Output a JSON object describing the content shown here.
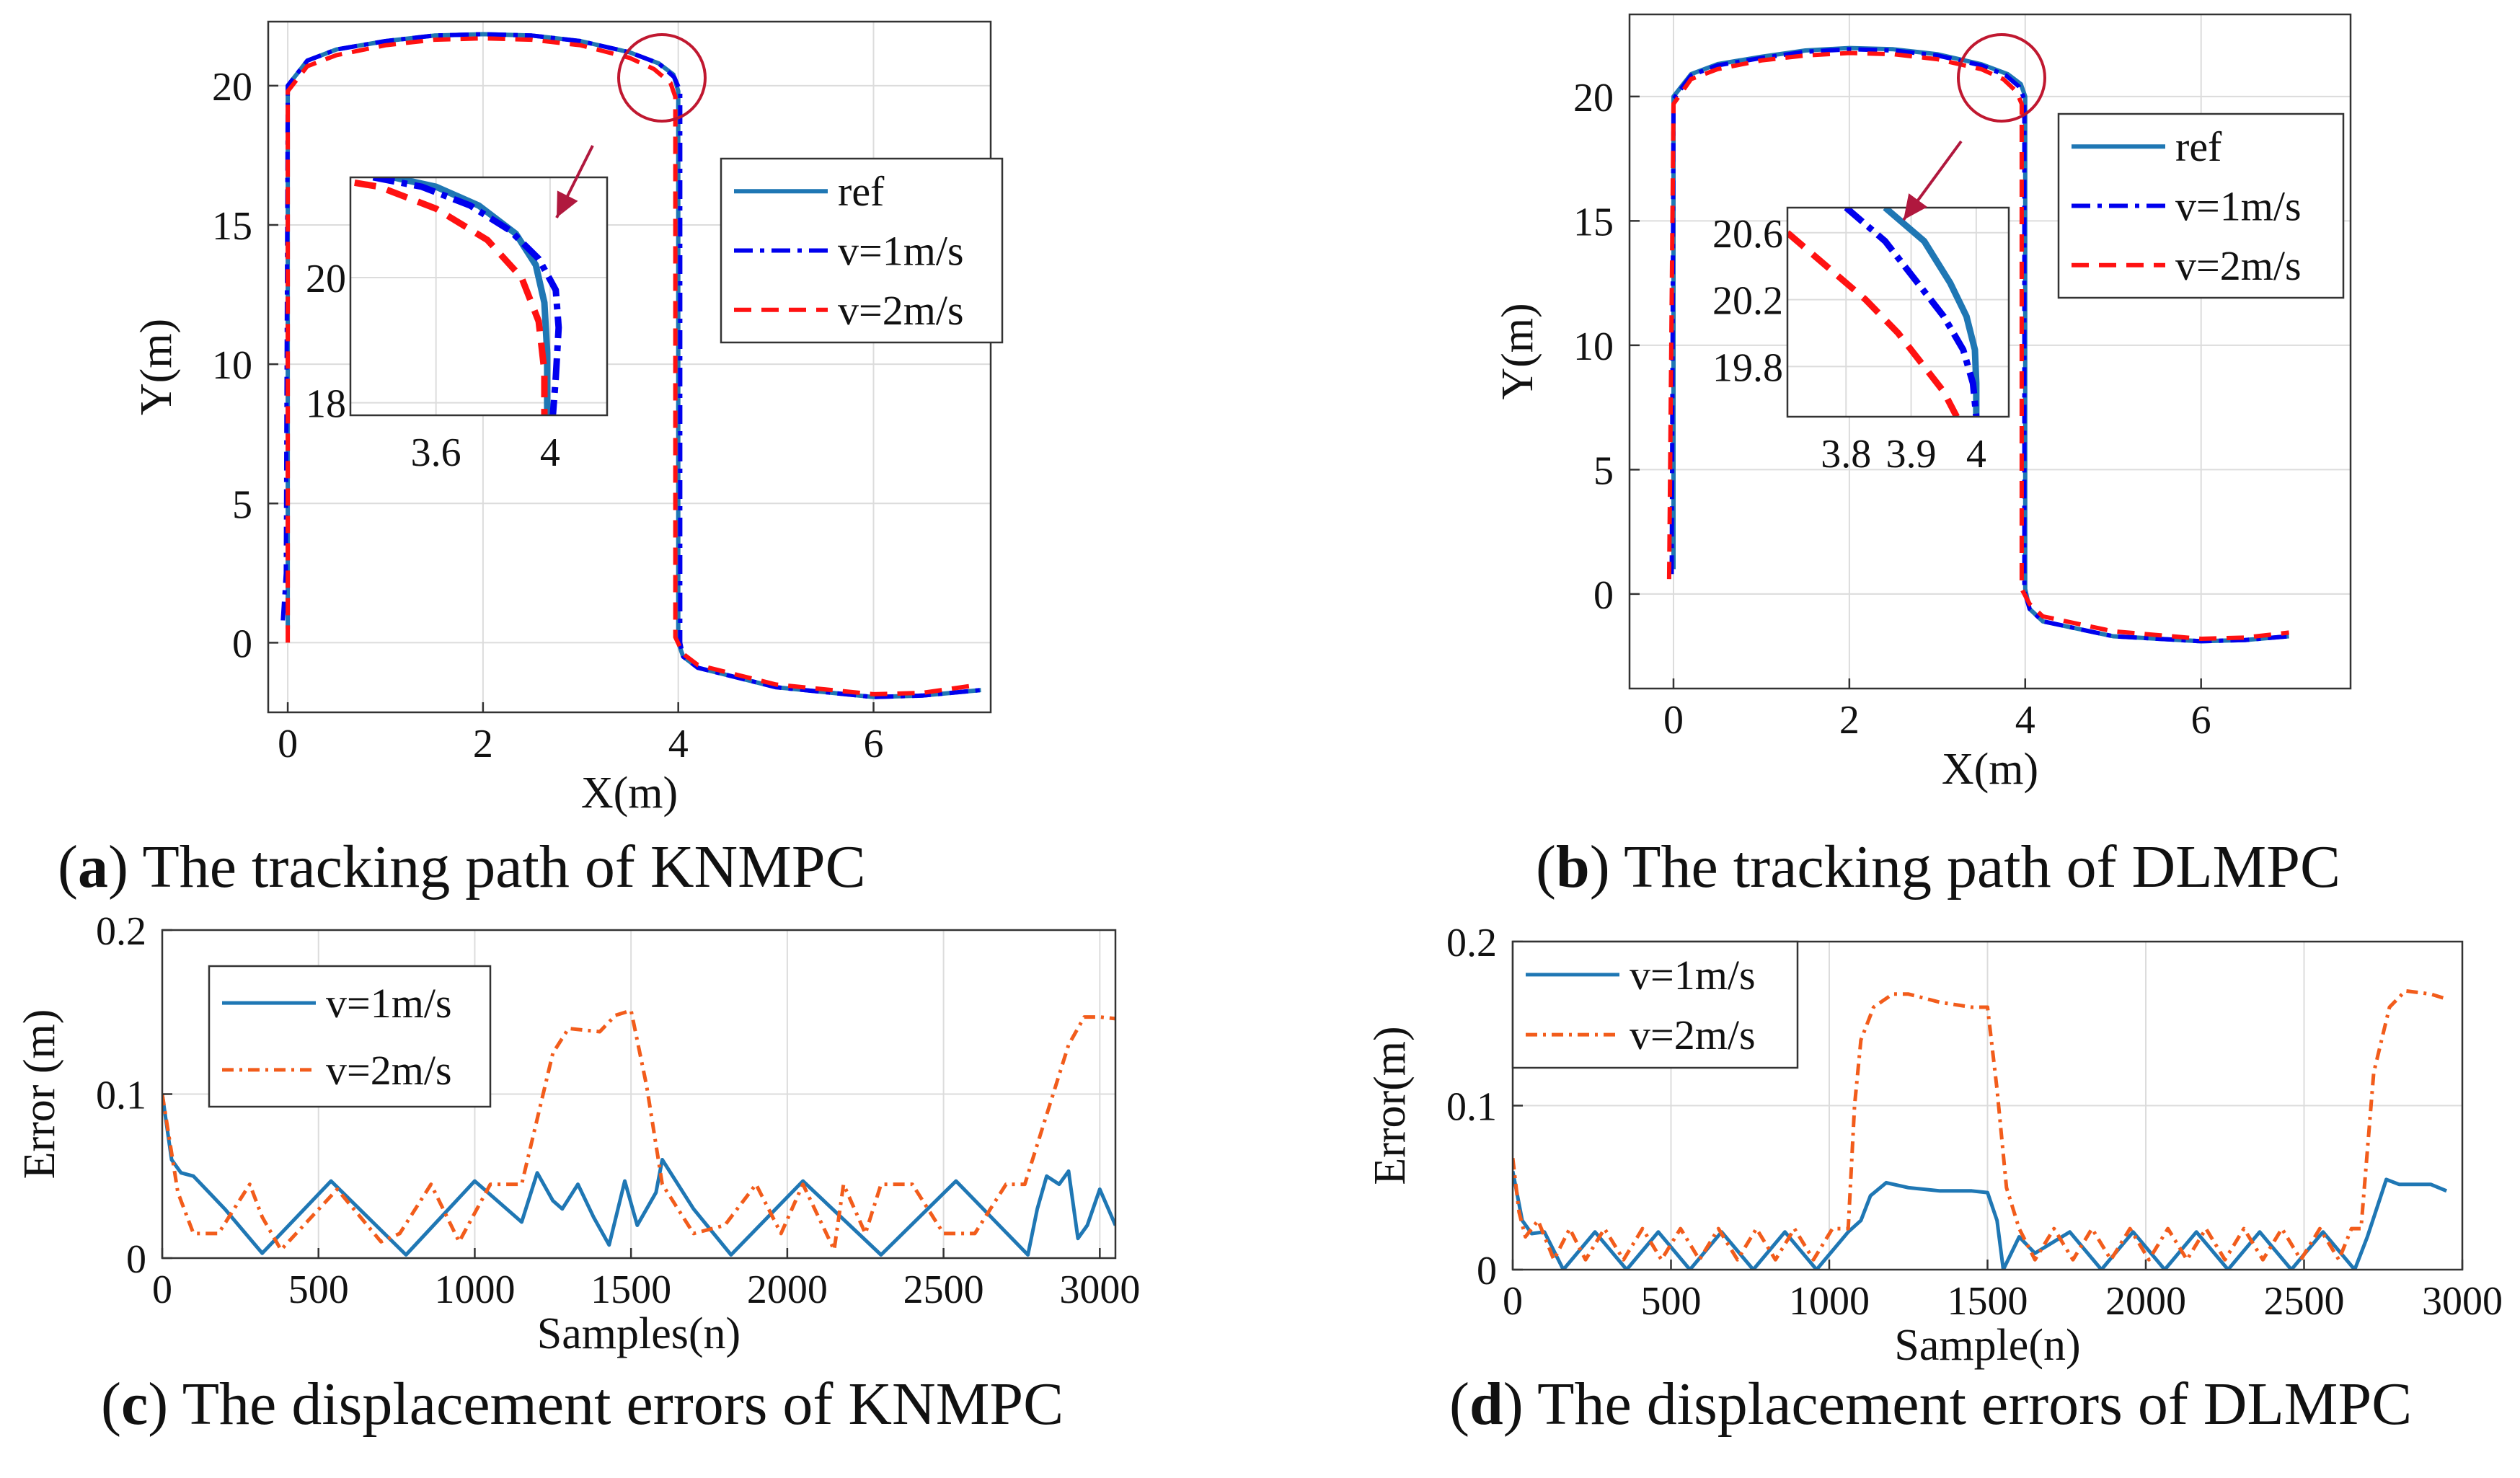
{
  "colors": {
    "ref": "#1f77b4",
    "v1_path": "#0000ee",
    "v2_path": "#ff1111",
    "v1_err": "#1f77b4",
    "v2_err": "#f25c1b",
    "circle": "#c01830",
    "arrow": "#b0183e"
  },
  "chart_data": [
    {
      "id": "a",
      "type": "line",
      "caption_letter": "a",
      "caption_text": ") The tracking path of KNMPC",
      "xlabel": "X(m)",
      "ylabel": "Y(m)",
      "xlim": [
        -0.2,
        7.2
      ],
      "ylim": [
        -2.5,
        22.3
      ],
      "xticks": [
        0,
        2,
        4,
        6
      ],
      "yticks": [
        0,
        5,
        10,
        15,
        20
      ],
      "grid": true,
      "legend_position": "right-inside-top",
      "series": [
        {
          "name": "ref",
          "style": "solid",
          "x": [
            0,
            0,
            0.2,
            0.5,
            1,
            1.5,
            2,
            2.5,
            3,
            3.5,
            3.8,
            3.95,
            4,
            4,
            4.05,
            4.2,
            5,
            6,
            6.5,
            7.1
          ],
          "y": [
            0.5,
            20,
            20.9,
            21.3,
            21.6,
            21.8,
            21.85,
            21.8,
            21.6,
            21.2,
            20.8,
            20.4,
            19.8,
            0,
            -0.5,
            -0.9,
            -1.6,
            -1.95,
            -1.9,
            -1.7
          ]
        },
        {
          "name": "v=1m/s",
          "style": "dashdot",
          "x": [
            -0.05,
            -0.02,
            0,
            0.2,
            0.5,
            1,
            1.5,
            2,
            2.5,
            3,
            3.5,
            3.8,
            3.96,
            4.02,
            4.02,
            4.05,
            4.2,
            5,
            6,
            6.5,
            7.1
          ],
          "y": [
            0.8,
            2.5,
            20,
            20.9,
            21.3,
            21.6,
            21.8,
            21.85,
            21.8,
            21.6,
            21.2,
            20.8,
            20.3,
            19.8,
            0,
            -0.5,
            -0.9,
            -1.6,
            -1.95,
            -1.9,
            -1.7
          ]
        },
        {
          "name": "v=2m/s",
          "style": "dashed",
          "x": [
            0,
            0,
            0.2,
            0.5,
            1,
            1.5,
            2,
            2.5,
            3,
            3.5,
            3.75,
            3.92,
            3.97,
            3.97,
            4.05,
            4.2,
            5,
            6,
            6.5,
            7.0
          ],
          "y": [
            0,
            19.8,
            20.7,
            21.1,
            21.45,
            21.65,
            21.7,
            21.65,
            21.45,
            21.0,
            20.6,
            20.1,
            19.6,
            0.2,
            -0.4,
            -0.8,
            -1.5,
            -1.85,
            -1.8,
            -1.55
          ]
        }
      ],
      "inset": {
        "xlim": [
          3.3,
          4.2
        ],
        "ylim": [
          17.8,
          21.6
        ],
        "xticks": [
          3.6,
          4
        ],
        "yticks": [
          18,
          20
        ],
        "series": [
          {
            "name": "ref",
            "x": [
              3.45,
              3.6,
              3.75,
              3.88,
              3.95,
              3.98,
              3.99,
              3.99
            ],
            "y": [
              21.6,
              21.45,
              21.15,
              20.7,
              20.2,
              19.6,
              18.8,
              17.8
            ]
          },
          {
            "name": "v=1m/s",
            "x": [
              3.38,
              3.55,
              3.72,
              3.86,
              3.96,
              4.02,
              4.03,
              4.02,
              4.01
            ],
            "y": [
              21.6,
              21.45,
              21.15,
              20.75,
              20.3,
              19.8,
              19.2,
              18.4,
              17.8
            ]
          },
          {
            "name": "v=2m/s",
            "x": [
              3.2,
              3.4,
              3.6,
              3.78,
              3.9,
              3.96,
              3.98,
              3.98
            ],
            "y": [
              21.6,
              21.45,
              21.1,
              20.6,
              20.0,
              19.3,
              18.5,
              17.8
            ]
          }
        ]
      }
    },
    {
      "id": "b",
      "type": "line",
      "caption_letter": "b",
      "caption_text": ") The tracking path of DLMPC",
      "xlabel": "X(m)",
      "ylabel": "Y(m)",
      "xlim": [
        -0.5,
        7.7
      ],
      "ylim": [
        -3.8,
        23.3
      ],
      "xticks": [
        0,
        2,
        4,
        6
      ],
      "yticks": [
        0,
        5,
        10,
        15,
        20
      ],
      "grid": true,
      "legend_position": "right-inside-top",
      "series": [
        {
          "name": "ref",
          "style": "solid",
          "x": [
            0,
            0,
            0.2,
            0.5,
            1,
            1.5,
            2,
            2.5,
            3,
            3.5,
            3.8,
            3.95,
            4,
            4,
            4.05,
            4.2,
            5,
            6,
            6.5,
            7.0
          ],
          "y": [
            1,
            20,
            20.9,
            21.3,
            21.6,
            21.85,
            21.95,
            21.9,
            21.7,
            21.3,
            20.9,
            20.5,
            20,
            0.2,
            -0.6,
            -1.1,
            -1.7,
            -1.9,
            -1.85,
            -1.7
          ]
        },
        {
          "name": "v=1m/s",
          "style": "dashdot",
          "x": [
            -0.02,
            0,
            0.2,
            0.5,
            1,
            1.5,
            2,
            2.5,
            3,
            3.5,
            3.78,
            3.93,
            3.99,
            3.99,
            4.05,
            4.2,
            5,
            6,
            6.5,
            7.0
          ],
          "y": [
            0.8,
            19.9,
            20.85,
            21.25,
            21.55,
            21.8,
            21.9,
            21.85,
            21.65,
            21.25,
            20.85,
            20.4,
            19.9,
            0.1,
            -0.6,
            -1.1,
            -1.7,
            -1.9,
            -1.85,
            -1.7
          ]
        },
        {
          "name": "v=2m/s",
          "style": "dashed",
          "x": [
            -0.05,
            0,
            0.2,
            0.5,
            1,
            1.5,
            2,
            2.5,
            3,
            3.5,
            3.75,
            3.9,
            3.96,
            3.96,
            4.05,
            4.2,
            5,
            6,
            6.5,
            7.0
          ],
          "y": [
            0.6,
            19.7,
            20.7,
            21.1,
            21.45,
            21.65,
            21.75,
            21.7,
            21.5,
            21.1,
            20.7,
            20.2,
            19.7,
            0.2,
            -0.4,
            -0.9,
            -1.5,
            -1.8,
            -1.75,
            -1.55
          ]
        }
      ],
      "inset": {
        "xlim": [
          3.71,
          4.05
        ],
        "ylim": [
          19.5,
          20.75
        ],
        "xticks": [
          3.8,
          3.9,
          4
        ],
        "yticks": [
          19.8,
          20.2,
          20.6
        ],
        "series": [
          {
            "name": "ref",
            "x": [
              3.86,
              3.92,
              3.96,
              3.985,
              3.998,
              4.0,
              4.0
            ],
            "y": [
              20.75,
              20.55,
              20.3,
              20.1,
              19.9,
              19.7,
              19.5
            ]
          },
          {
            "name": "v=1m/s",
            "x": [
              3.8,
              3.86,
              3.91,
              3.95,
              3.98,
              3.995,
              4.0
            ],
            "y": [
              20.75,
              20.55,
              20.3,
              20.1,
              19.9,
              19.7,
              19.5
            ]
          },
          {
            "name": "v=2m/s",
            "x": [
              3.71,
              3.77,
              3.83,
              3.88,
              3.92,
              3.95,
              3.97
            ],
            "y": [
              20.6,
              20.4,
              20.2,
              20.0,
              19.8,
              19.65,
              19.5
            ]
          }
        ]
      }
    },
    {
      "id": "c",
      "type": "line",
      "caption_letter": "c",
      "caption_text": ") The displacement errors of KNMPC",
      "xlabel": "Samples(n)",
      "ylabel": "Error (m)",
      "xlim": [
        0,
        3050
      ],
      "ylim": [
        0,
        0.2
      ],
      "xticks": [
        0,
        500,
        1000,
        1500,
        2000,
        2500,
        3000
      ],
      "yticks": [
        0,
        0.1,
        0.2
      ],
      "grid": true,
      "legend_position": "top-left",
      "series": [
        {
          "name": "v=1m/s",
          "style": "solid",
          "x": [
            0,
            30,
            60,
            100,
            150,
            200,
            320,
            540,
            780,
            1000,
            1150,
            1200,
            1250,
            1280,
            1330,
            1380,
            1430,
            1480,
            1520,
            1580,
            1600,
            1700,
            1820,
            2050,
            2300,
            2540,
            2770,
            2800,
            2830,
            2870,
            2900,
            2930,
            2960,
            3000,
            3050
          ],
          "y": [
            0.1,
            0.06,
            0.052,
            0.05,
            0.04,
            0.03,
            0.003,
            0.047,
            0.002,
            0.047,
            0.022,
            0.052,
            0.035,
            0.03,
            0.045,
            0.025,
            0.008,
            0.047,
            0.02,
            0.04,
            0.06,
            0.03,
            0.002,
            0.047,
            0.002,
            0.047,
            0.002,
            0.03,
            0.05,
            0.045,
            0.053,
            0.012,
            0.02,
            0.042,
            0.02
          ]
        },
        {
          "name": "v=2m/s",
          "style": "dashdot",
          "x": [
            0,
            50,
            100,
            180,
            280,
            320,
            380,
            560,
            700,
            760,
            860,
            950,
            1050,
            1150,
            1250,
            1300,
            1400,
            1450,
            1500,
            1550,
            1600,
            1700,
            1800,
            1900,
            1980,
            2050,
            2150,
            2180,
            2250,
            2300,
            2400,
            2500,
            2600,
            2700,
            2760,
            2900,
            2950,
            3000,
            3050
          ],
          "y": [
            0.1,
            0.04,
            0.015,
            0.015,
            0.045,
            0.025,
            0.005,
            0.042,
            0.01,
            0.015,
            0.045,
            0.01,
            0.045,
            0.045,
            0.125,
            0.14,
            0.138,
            0.148,
            0.151,
            0.105,
            0.045,
            0.015,
            0.02,
            0.045,
            0.015,
            0.045,
            0.005,
            0.045,
            0.015,
            0.045,
            0.045,
            0.015,
            0.015,
            0.045,
            0.045,
            0.13,
            0.147,
            0.147,
            0.146
          ]
        }
      ]
    },
    {
      "id": "d",
      "type": "line",
      "caption_letter": "d",
      "caption_text": ") The displacement errors of DLMPC",
      "xlabel": "Sample(n)",
      "ylabel": "Error(m)",
      "xlim": [
        0,
        3000
      ],
      "ylim": [
        0,
        0.2
      ],
      "xticks": [
        0,
        500,
        1000,
        1500,
        2000,
        2500,
        3000
      ],
      "yticks": [
        0,
        0.1,
        0.2
      ],
      "grid": true,
      "legend_position": "top-left",
      "series": [
        {
          "name": "v=1m/s",
          "style": "solid",
          "x": [
            0,
            30,
            60,
            100,
            160,
            260,
            360,
            460,
            560,
            660,
            760,
            860,
            960,
            1060,
            1100,
            1130,
            1180,
            1250,
            1350,
            1450,
            1500,
            1530,
            1550,
            1600,
            1650,
            1760,
            1860,
            1960,
            2060,
            2160,
            2260,
            2360,
            2460,
            2560,
            2660,
            2700,
            2760,
            2800,
            2900,
            2950
          ],
          "y": [
            0.06,
            0.03,
            0.022,
            0.023,
            0.0,
            0.023,
            0.0,
            0.023,
            0.0,
            0.023,
            0.0,
            0.023,
            0.0,
            0.023,
            0.03,
            0.045,
            0.053,
            0.05,
            0.048,
            0.048,
            0.047,
            0.03,
            0.0,
            0.02,
            0.01,
            0.023,
            0.0,
            0.023,
            0.0,
            0.023,
            0.0,
            0.023,
            0.0,
            0.023,
            0.0,
            0.02,
            0.055,
            0.052,
            0.052,
            0.048
          ]
        },
        {
          "name": "v=2m/s",
          "style": "dashdot",
          "x": [
            0,
            20,
            40,
            80,
            130,
            180,
            230,
            290,
            350,
            410,
            470,
            530,
            590,
            650,
            710,
            770,
            830,
            890,
            950,
            1010,
            1060,
            1080,
            1100,
            1140,
            1200,
            1250,
            1350,
            1450,
            1500,
            1530,
            1560,
            1600,
            1650,
            1710,
            1770,
            1830,
            1890,
            1950,
            2010,
            2070,
            2130,
            2190,
            2250,
            2310,
            2370,
            2430,
            2490,
            2550,
            2610,
            2650,
            2680,
            2720,
            2770,
            2820,
            2900,
            2950
          ],
          "y": [
            0.068,
            0.035,
            0.02,
            0.03,
            0.006,
            0.025,
            0.006,
            0.025,
            0.006,
            0.025,
            0.006,
            0.025,
            0.006,
            0.025,
            0.006,
            0.025,
            0.006,
            0.025,
            0.006,
            0.025,
            0.025,
            0.1,
            0.14,
            0.16,
            0.168,
            0.168,
            0.163,
            0.16,
            0.16,
            0.11,
            0.05,
            0.025,
            0.006,
            0.025,
            0.006,
            0.025,
            0.006,
            0.025,
            0.006,
            0.025,
            0.006,
            0.025,
            0.006,
            0.025,
            0.006,
            0.025,
            0.006,
            0.025,
            0.006,
            0.025,
            0.025,
            0.12,
            0.16,
            0.17,
            0.168,
            0.165
          ]
        }
      ]
    }
  ]
}
